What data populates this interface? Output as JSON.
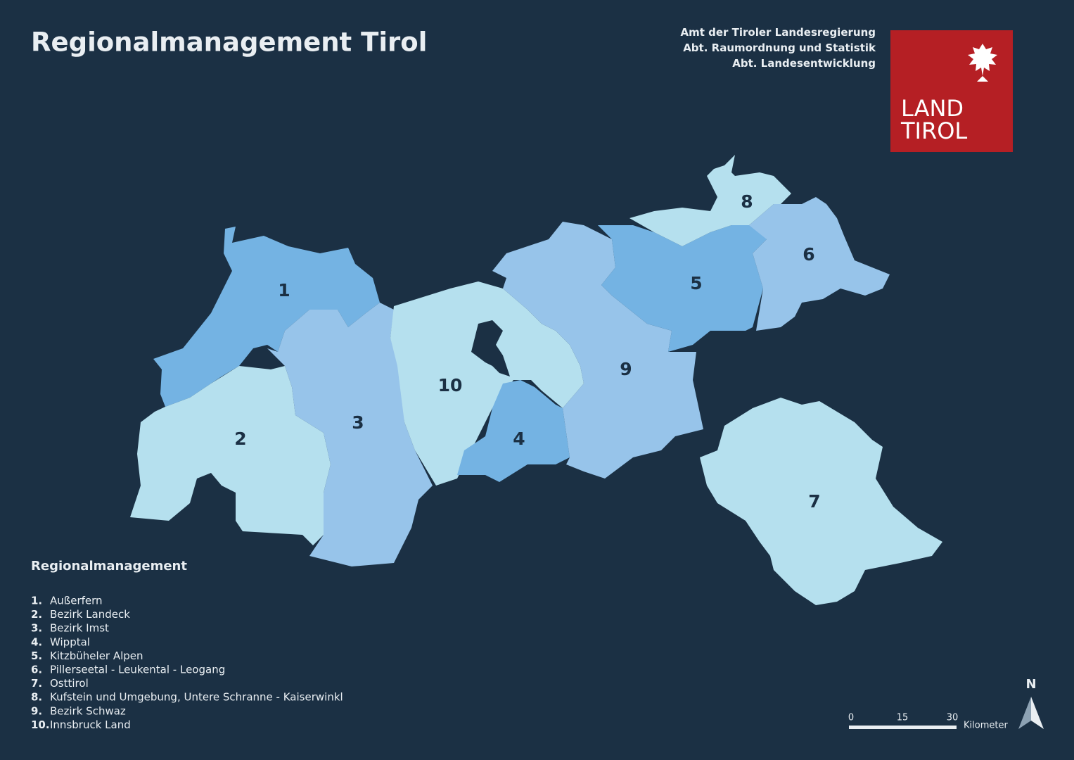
{
  "header": {
    "title": "Regionalmanagement Tirol",
    "agency": [
      "Amt der Tiroler Landesregierung",
      "Abt. Raumordnung und Statistik",
      "Abt. Landesentwicklung"
    ],
    "logo": [
      "LAND",
      "TIROL"
    ]
  },
  "regions": [
    {
      "label": "1",
      "color": "#74b3e3"
    },
    {
      "label": "2",
      "color": "#b5e0ee"
    },
    {
      "label": "3",
      "color": "#97c4ea"
    },
    {
      "label": "4",
      "color": "#74b3e3"
    },
    {
      "label": "5",
      "color": "#74b3e3"
    },
    {
      "label": "6",
      "color": "#97c4ea"
    },
    {
      "label": "7",
      "color": "#b5e0ee"
    },
    {
      "label": "8",
      "color": "#b5e0ee"
    },
    {
      "label": "9",
      "color": "#97c4ea"
    },
    {
      "label": "10",
      "color": "#b5e0ee"
    }
  ],
  "legend": {
    "title": "Regionalmanagement",
    "items": [
      {
        "number": "1.",
        "name": "Außerfern"
      },
      {
        "number": "2.",
        "name": "Bezirk Landeck"
      },
      {
        "number": "3.",
        "name": "Bezirk Imst"
      },
      {
        "number": "4.",
        "name": "Wipptal"
      },
      {
        "number": "5.",
        "name": "Kitzbüheler Alpen"
      },
      {
        "number": "6.",
        "name": "Pillerseetal - Leukental - Leogang"
      },
      {
        "number": "7.",
        "name": "Osttirol"
      },
      {
        "number": "8.",
        "name": "Kufstein und Umgebung, Untere Schranne - Kaiserwinkl"
      },
      {
        "number": "9.",
        "name": "Bezirk Schwaz"
      },
      {
        "number": "10.",
        "name": "Innsbruck Land"
      }
    ]
  },
  "scale": {
    "ticks": [
      0,
      15,
      30
    ],
    "unit": "Kilometer"
  },
  "north": "N"
}
